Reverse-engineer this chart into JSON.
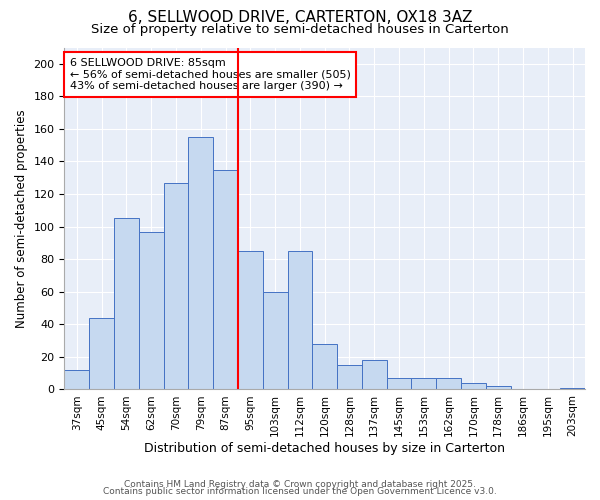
{
  "title1": "6, SELLWOOD DRIVE, CARTERTON, OX18 3AZ",
  "title2": "Size of property relative to semi-detached houses in Carterton",
  "xlabel": "Distribution of semi-detached houses by size in Carterton",
  "ylabel": "Number of semi-detached properties",
  "categories": [
    "37sqm",
    "45sqm",
    "54sqm",
    "62sqm",
    "70sqm",
    "79sqm",
    "87sqm",
    "95sqm",
    "103sqm",
    "112sqm",
    "120sqm",
    "128sqm",
    "137sqm",
    "145sqm",
    "153sqm",
    "162sqm",
    "170sqm",
    "178sqm",
    "186sqm",
    "195sqm",
    "203sqm"
  ],
  "values": [
    12,
    44,
    105,
    97,
    127,
    155,
    135,
    85,
    60,
    85,
    28,
    15,
    18,
    7,
    7,
    7,
    4,
    2,
    0,
    0,
    1
  ],
  "bar_color": "#c6d9f0",
  "bar_edge_color": "#4472c4",
  "vline_x_index": 6,
  "vline_color": "red",
  "annotation_line1": "6 SELLWOOD DRIVE: 85sqm",
  "annotation_line2": "← 56% of semi-detached houses are smaller (505)",
  "annotation_line3": "43% of semi-detached houses are larger (390) →",
  "annotation_box_edge": "red",
  "annotation_fontsize": 8,
  "footnote1": "Contains HM Land Registry data © Crown copyright and database right 2025.",
  "footnote2": "Contains public sector information licensed under the Open Government Licence v3.0.",
  "ylim": [
    0,
    210
  ],
  "yticks": [
    0,
    20,
    40,
    60,
    80,
    100,
    120,
    140,
    160,
    180,
    200
  ],
  "bg_color": "#e8eef8",
  "title1_fontsize": 11,
  "title2_fontsize": 9.5,
  "xlabel_fontsize": 9,
  "ylabel_fontsize": 8.5,
  "tick_fontsize": 8,
  "xtick_fontsize": 7.5
}
